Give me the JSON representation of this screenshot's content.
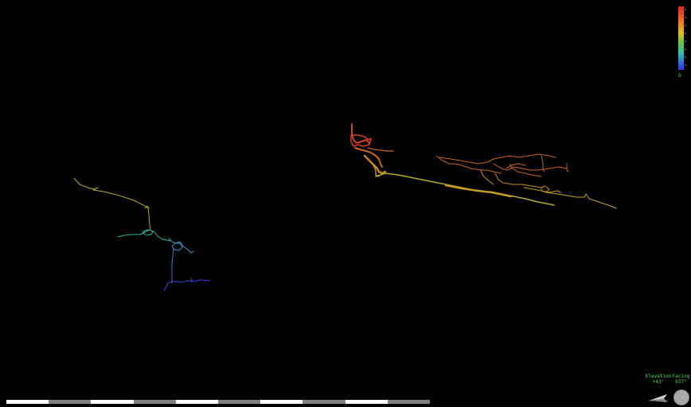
{
  "legend": {
    "min_label": "0",
    "gradient_colors": [
      "#e02020",
      "#f07020",
      "#e0c020",
      "#60c040",
      "#30c0b0",
      "#3060e0",
      "#3030d0"
    ]
  },
  "hud": {
    "elevation_label": "Elevation",
    "elevation_value": "+43°",
    "facing_label": "Facing",
    "facing_value": "037°",
    "text_color": "#4de04d"
  },
  "scale_bar": {
    "segments": 10,
    "colors": [
      "#ffffff",
      "#808080"
    ]
  },
  "scene": {
    "background": "#000000",
    "survey_colors": {
      "high": "#d83a22",
      "upper": "#c9631e",
      "mid_high": "#c48a20",
      "mid": "#b6a82a",
      "mid_low": "#8cb03a",
      "low": "#2cb4a0",
      "lower": "#3a7ed0",
      "lowest": "#3a3ee0"
    },
    "icons": [
      "cave-survey-left-icon",
      "cave-survey-right-icon",
      "elevation-indicator-icon",
      "compass-indicator-icon"
    ]
  }
}
